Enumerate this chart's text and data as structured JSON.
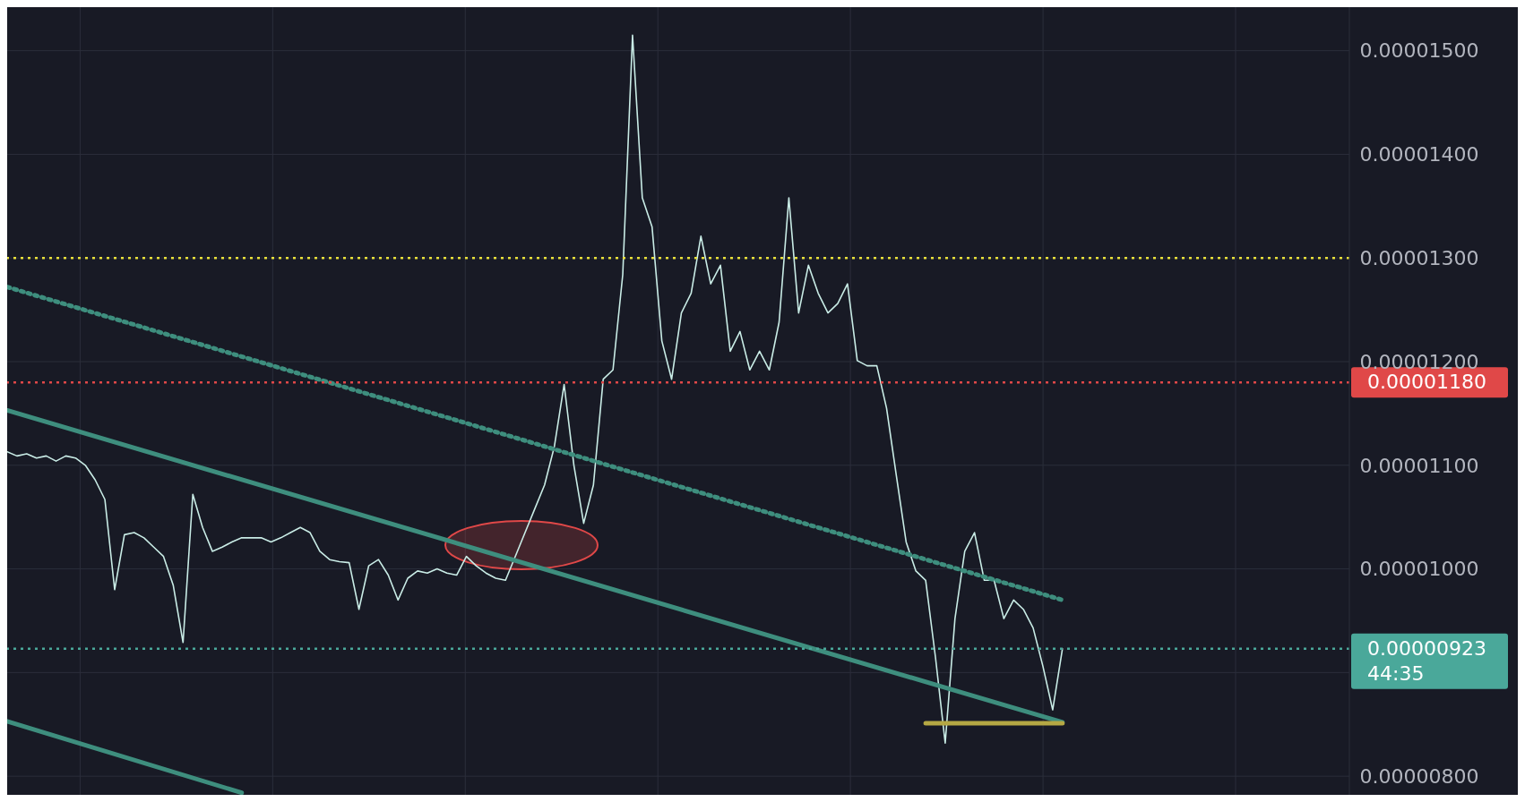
{
  "chart_data": {
    "type": "line",
    "categories": [
      null,
      null,
      null,
      null,
      null,
      null,
      null,
      null,
      null,
      null,
      null,
      null,
      null,
      null,
      null,
      null,
      null,
      null,
      null,
      null,
      null,
      null,
      null,
      null,
      null,
      null,
      null,
      null,
      null,
      null,
      null,
      null,
      null,
      null,
      null,
      null,
      null,
      null,
      null,
      null,
      null,
      null,
      null,
      null,
      null,
      null,
      null,
      null,
      null,
      null,
      null,
      null,
      null,
      null,
      null,
      null,
      null,
      null,
      null,
      null,
      null,
      null,
      null,
      null,
      null,
      null,
      null,
      null,
      null,
      null,
      null,
      null,
      null,
      null,
      null,
      null,
      null,
      null,
      null,
      null,
      null,
      null,
      null,
      null,
      null,
      null,
      null,
      null,
      null,
      null,
      null,
      null,
      null,
      null,
      null,
      null,
      null,
      null,
      null,
      null,
      null,
      null,
      null,
      null,
      null,
      null,
      null,
      null,
      null
    ],
    "ylim": [
      7.82e-06,
      1.542e-05
    ],
    "yticks": [
      {
        "value": 8e-06,
        "label": "0.00000800"
      },
      {
        "value": 9e-06,
        "label": null
      },
      {
        "value": 1e-05,
        "label": "0.00001000"
      },
      {
        "value": 1.1e-05,
        "label": "0.00001100"
      },
      {
        "value": 1.2e-05,
        "label": "0.00001200"
      },
      {
        "value": 1.3e-05,
        "label": "0.00001300"
      },
      {
        "value": 1.4e-05,
        "label": "0.00001400"
      },
      {
        "value": 1.5e-05,
        "label": "0.00001500"
      }
    ],
    "tick_labels": "y",
    "grid": true,
    "marker": "none",
    "series": [
      {
        "color": "#c9ece6",
        "values": [
          1.113e-05,
          1.109e-05,
          1.111e-05,
          1.107e-05,
          1.109e-05,
          1.104e-05,
          1.109e-05,
          1.107e-05,
          1.1e-05,
          1.086e-05,
          1.067e-05,
          9.8e-06,
          1.033e-05,
          1.035e-05,
          1.03e-05,
          1.021e-05,
          1.012e-05,
          9.84e-06,
          9.29e-06,
          1.072e-05,
          1.04e-05,
          1.017e-05,
          1.021e-05,
          1.026e-05,
          1.03e-05,
          1.03e-05,
          1.03e-05,
          1.026e-05,
          1.03e-05,
          1.035e-05,
          1.04e-05,
          1.035e-05,
          1.017e-05,
          1.009e-05,
          1.007e-05,
          1.006e-05,
          9.61e-06,
          1.003e-05,
          1.009e-05,
          9.94e-06,
          9.7e-06,
          9.91e-06,
          9.98e-06,
          9.96e-06,
          1e-05,
          9.96e-06,
          9.94e-06,
          1.012e-05,
          1.003e-05,
          9.96e-06,
          9.91e-06,
          9.89e-06,
          1.012e-05,
          1.035e-05,
          1.058e-05,
          1.081e-05,
          1.118e-05,
          1.178e-05,
          1.1e-05,
          1.044e-05,
          1.081e-05,
          1.183e-05,
          1.192e-05,
          1.284e-05,
          1.515e-05,
          1.358e-05,
          1.33e-05,
          1.22e-05,
          1.183e-05,
          1.247e-05,
          1.266e-05,
          1.321e-05,
          1.275e-05,
          1.293e-05,
          1.21e-05,
          1.229e-05,
          1.192e-05,
          1.21e-05,
          1.192e-05,
          1.238e-05,
          1.358e-05,
          1.247e-05,
          1.293e-05,
          1.266e-05,
          1.247e-05,
          1.256e-05,
          1.275e-05,
          1.201e-05,
          1.196e-05,
          1.196e-05,
          1.155e-05,
          1.09e-05,
          1.026e-05,
          9.98e-06,
          9.89e-06,
          9.15e-06,
          8.32e-06,
          9.52e-06,
          1.017e-05,
          1.035e-05,
          9.89e-06,
          9.89e-06,
          9.52e-06,
          9.7e-06,
          9.61e-06,
          9.43e-06,
          9.06e-06,
          8.64e-06,
          9.23e-06
        ]
      },
      {
        "color": "#3e8e7e",
        "values": [
          1.153e-05,
          null,
          null,
          null,
          null,
          null,
          null,
          null,
          null,
          null,
          null,
          null,
          null,
          null,
          null,
          null,
          null,
          null,
          null,
          null,
          null,
          null,
          null,
          null,
          null,
          null,
          null,
          null,
          null,
          null,
          null,
          null,
          null,
          null,
          null,
          null,
          null,
          null,
          null,
          null,
          null,
          null,
          null,
          null,
          null,
          null,
          null,
          null,
          null,
          null,
          null,
          null,
          null,
          null,
          null,
          null,
          null,
          null,
          null,
          null,
          null,
          null,
          null,
          null,
          null,
          null,
          null,
          null,
          null,
          null,
          null,
          null,
          null,
          null,
          null,
          null,
          null,
          null,
          null,
          null,
          null,
          null,
          null,
          null,
          null,
          null,
          null,
          null,
          null,
          null,
          null,
          null,
          null,
          null,
          null,
          null,
          null,
          null,
          null,
          null,
          null,
          null,
          null,
          null,
          null,
          null,
          null,
          null,
          8.52e-06
        ]
      },
      {
        "color": "#3e8e7e",
        "values": [
          8.53e-06,
          null,
          null,
          null,
          null,
          null,
          null,
          null,
          null,
          null,
          null,
          null,
          null,
          null,
          null,
          null,
          null,
          null,
          null,
          null,
          null,
          null,
          null,
          null,
          7.84e-06,
          null,
          null,
          null,
          null,
          null,
          null,
          null,
          null,
          null,
          null,
          null,
          null,
          null,
          null,
          null,
          null,
          null,
          null,
          null,
          null,
          null,
          null,
          null,
          null,
          null,
          null,
          null,
          null,
          null,
          null,
          null,
          null,
          null,
          null,
          null,
          null,
          null,
          null,
          null,
          null,
          null,
          null,
          null,
          null,
          null,
          null,
          null,
          null,
          null,
          null,
          null,
          null,
          null,
          null,
          null,
          null,
          null,
          null,
          null,
          null,
          null,
          null,
          null,
          null,
          null,
          null,
          null,
          null,
          null,
          null,
          null,
          null,
          null,
          null,
          null,
          null,
          null,
          null,
          null,
          null,
          null,
          null,
          null,
          null
        ]
      },
      {
        "color": "#3e8e7e",
        "line_style": "dotted",
        "values": [
          1.272e-05,
          null,
          null,
          null,
          null,
          null,
          null,
          null,
          null,
          null,
          null,
          null,
          null,
          null,
          null,
          null,
          null,
          null,
          null,
          null,
          null,
          null,
          null,
          null,
          null,
          null,
          null,
          null,
          null,
          null,
          null,
          null,
          null,
          null,
          null,
          null,
          null,
          null,
          null,
          null,
          null,
          null,
          null,
          null,
          null,
          null,
          null,
          null,
          null,
          null,
          null,
          null,
          null,
          null,
          null,
          null,
          null,
          null,
          null,
          null,
          null,
          null,
          null,
          null,
          null,
          null,
          null,
          null,
          null,
          null,
          null,
          null,
          null,
          null,
          null,
          null,
          null,
          null,
          null,
          null,
          null,
          null,
          null,
          null,
          null,
          null,
          null,
          null,
          null,
          null,
          null,
          null,
          null,
          null,
          null,
          null,
          null,
          null,
          null,
          null,
          null,
          null,
          null,
          null,
          null,
          null,
          null,
          null,
          9.7e-06
        ]
      },
      {
        "color": "#b5a844",
        "values": [
          null,
          null,
          null,
          null,
          null,
          null,
          null,
          null,
          null,
          null,
          null,
          null,
          null,
          null,
          null,
          null,
          null,
          null,
          null,
          null,
          null,
          null,
          null,
          null,
          null,
          null,
          null,
          null,
          null,
          null,
          null,
          null,
          null,
          null,
          null,
          null,
          null,
          null,
          null,
          null,
          null,
          null,
          null,
          null,
          null,
          null,
          null,
          null,
          null,
          null,
          null,
          null,
          null,
          null,
          null,
          null,
          null,
          null,
          null,
          null,
          null,
          null,
          null,
          null,
          null,
          null,
          null,
          null,
          null,
          null,
          null,
          null,
          null,
          null,
          null,
          null,
          null,
          null,
          null,
          null,
          null,
          null,
          null,
          null,
          null,
          null,
          null,
          null,
          null,
          null,
          null,
          null,
          null,
          null,
          8.51e-06,
          null,
          null,
          null,
          null,
          null,
          null,
          null,
          null,
          null,
          null,
          null,
          null,
          null,
          8.51e-06
        ]
      }
    ],
    "ref_lines": [
      {
        "axis": "y",
        "value": 1.3e-05,
        "color": "#e8e03a",
        "line_style": "dotted"
      },
      {
        "axis": "y",
        "value": 1.18e-05,
        "label": "0.00001180",
        "color": "#e04848",
        "line_style": "dotted"
      },
      {
        "axis": "y",
        "value": 9.23e-06,
        "label": "0.00000923",
        "color": "#4aa89a",
        "line_style": "dotted"
      }
    ],
    "annotations": [
      "44:35"
    ]
  }
}
